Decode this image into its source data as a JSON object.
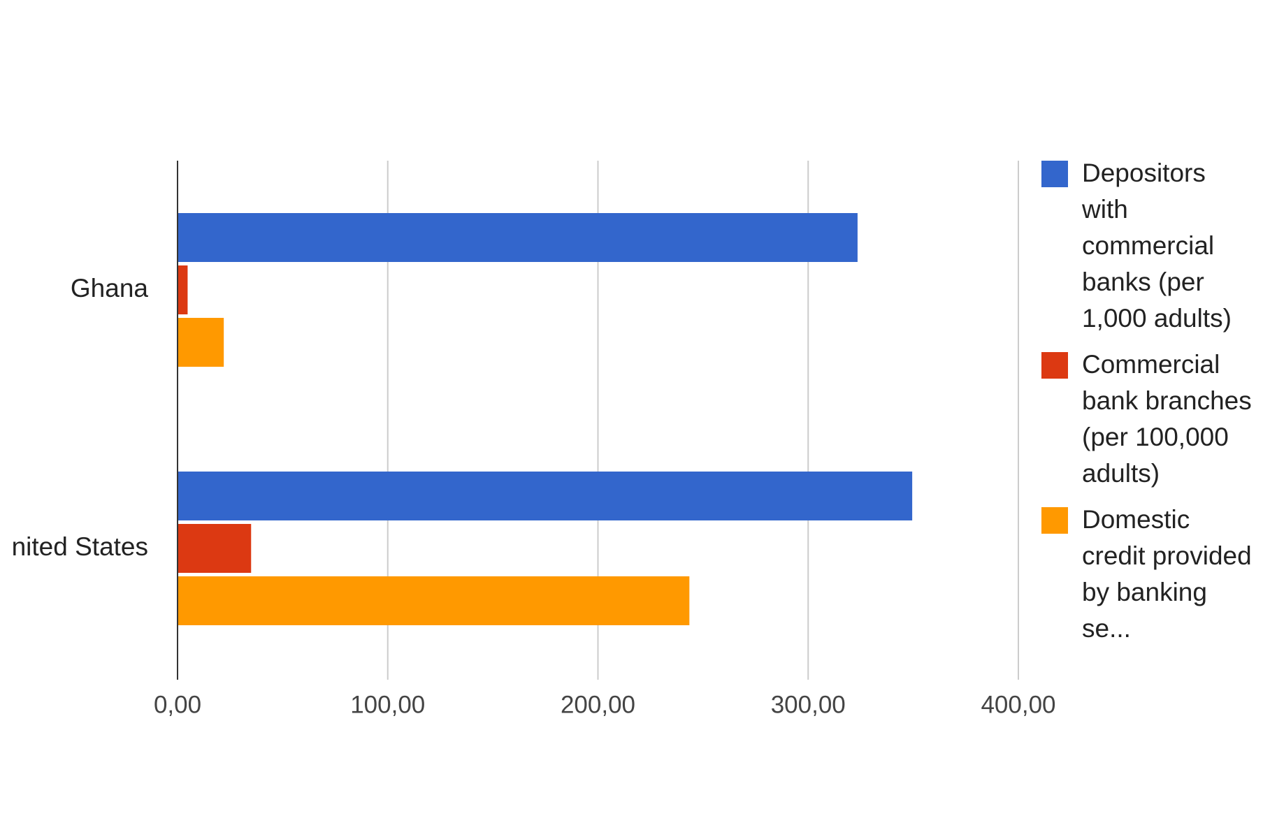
{
  "chart_data": {
    "type": "bar",
    "orientation": "horizontal",
    "categories": [
      "Ghana",
      "nited States"
    ],
    "series": [
      {
        "name": "Depositors with commercial banks (per 1,000 adults)",
        "color": "#3366cc",
        "values": [
          323.5,
          349.5
        ]
      },
      {
        "name": "Commercial bank branches (per 100,000 adults)",
        "color": "#dc3912",
        "values": [
          4.8,
          35.0
        ]
      },
      {
        "name": "Domestic credit provided by banking se...",
        "color": "#ff9900",
        "values": [
          22.0,
          243.5
        ]
      }
    ],
    "xlim": [
      0,
      400
    ],
    "x_ticks": [
      0,
      100,
      200,
      300,
      400
    ],
    "x_tick_labels": [
      "0,00",
      "100,00",
      "200,00",
      "300,00",
      "400,00"
    ],
    "grid": true,
    "legend_position": "right",
    "title": "",
    "xlabel": "",
    "ylabel": ""
  },
  "legend": {
    "items": [
      {
        "label": "Depositors with commercial banks (per 1,000 adults)",
        "color": "#3366cc"
      },
      {
        "label": "Commercial bank branches (per 100,000 adults)",
        "color": "#dc3912"
      },
      {
        "label": "Domestic credit provided by banking se...",
        "color": "#ff9900"
      }
    ]
  },
  "colors": {
    "grid": "#cccccc",
    "axis": "#333333",
    "text": "#222222",
    "tick_text": "#444444"
  }
}
